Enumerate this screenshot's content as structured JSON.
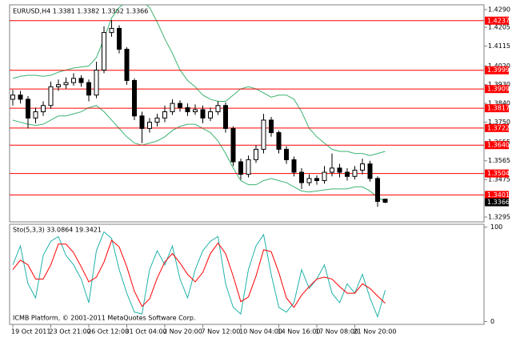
{
  "chart_data": [
    {
      "type": "candlestick",
      "title": "EURUSD,H4  1.3381 1.3382 1.3362 1.3366",
      "categories": [
        "19 Oct 2011",
        null,
        null,
        null,
        null,
        "23 Oct 21:00",
        null,
        null,
        null,
        null,
        "26 Oct 12:00",
        null,
        null,
        null,
        null,
        "31 Oct 04:00",
        null,
        null,
        null,
        null,
        "2 Nov 20:00",
        null,
        null,
        null,
        null,
        "7 Nov 12:00",
        null,
        null,
        null,
        null,
        "10 Nov 04:00",
        null,
        null,
        null,
        null,
        "14 Nov 16:00",
        null,
        null,
        null,
        null,
        "17 Nov 08:00",
        null,
        null,
        null,
        null,
        "21 Nov 20:00",
        null,
        null,
        null,
        null
      ],
      "open": [
        1.386,
        1.388,
        1.386,
        1.377,
        1.38,
        1.383,
        1.392,
        1.393,
        1.394,
        1.396,
        1.394,
        1.388,
        1.4,
        1.418,
        1.42,
        1.41,
        1.395,
        1.378,
        1.372,
        1.375,
        1.377,
        1.38,
        1.384,
        1.382,
        1.38,
        1.381,
        1.377,
        1.38,
        1.383,
        1.372,
        1.356,
        1.35,
        1.357,
        1.362,
        1.376,
        1.37,
        1.362,
        1.357,
        1.351,
        1.346,
        1.348,
        1.347,
        1.351,
        1.353,
        1.351,
        1.349,
        1.352,
        1.355,
        1.348,
        1.3381
      ],
      "high": [
        1.3905,
        1.39,
        1.3875,
        1.382,
        1.385,
        1.3945,
        1.3955,
        1.3965,
        1.3985,
        1.3975,
        1.3955,
        1.404,
        1.421,
        1.424,
        1.4215,
        1.411,
        1.396,
        1.38,
        1.377,
        1.379,
        1.383,
        1.386,
        1.3855,
        1.384,
        1.3835,
        1.383,
        1.382,
        1.385,
        1.3845,
        1.373,
        1.3575,
        1.359,
        1.364,
        1.379,
        1.3775,
        1.371,
        1.3635,
        1.3585,
        1.353,
        1.35,
        1.3495,
        1.354,
        1.36,
        1.355,
        1.353,
        1.354,
        1.3575,
        1.3565,
        1.349,
        1.3382
      ],
      "low": [
        1.383,
        1.384,
        1.372,
        1.3745,
        1.378,
        1.3815,
        1.39,
        1.391,
        1.3925,
        1.392,
        1.385,
        1.3865,
        1.3985,
        1.416,
        1.408,
        1.393,
        1.376,
        1.365,
        1.37,
        1.373,
        1.375,
        1.3785,
        1.38,
        1.378,
        1.3785,
        1.3745,
        1.3755,
        1.3785,
        1.37,
        1.354,
        1.3475,
        1.3485,
        1.3555,
        1.36,
        1.368,
        1.36,
        1.355,
        1.349,
        1.343,
        1.3445,
        1.345,
        1.3455,
        1.349,
        1.3485,
        1.347,
        1.3475,
        1.35,
        1.3465,
        1.3345,
        1.3362
      ],
      "close": [
        1.388,
        1.386,
        1.377,
        1.38,
        1.383,
        1.392,
        1.393,
        1.394,
        1.396,
        1.394,
        1.388,
        1.4,
        1.418,
        1.42,
        1.41,
        1.395,
        1.378,
        1.372,
        1.375,
        1.377,
        1.38,
        1.384,
        1.382,
        1.38,
        1.381,
        1.377,
        1.38,
        1.383,
        1.372,
        1.356,
        1.35,
        1.357,
        1.362,
        1.376,
        1.37,
        1.362,
        1.357,
        1.351,
        1.346,
        1.348,
        1.347,
        1.351,
        1.353,
        1.351,
        1.349,
        1.352,
        1.355,
        1.348,
        1.337,
        1.3366
      ],
      "up_color": "#ffffff",
      "down_color": "#000000",
      "candle_outline": "#000000",
      "bollinger_upper": [
        1.396,
        1.397,
        1.3975,
        1.3975,
        1.397,
        1.3975,
        1.399,
        1.4,
        1.401,
        1.4015,
        1.402,
        1.406,
        1.415,
        1.425,
        1.43,
        1.433,
        1.434,
        1.433,
        1.43,
        1.423,
        1.415,
        1.408,
        1.4,
        1.395,
        1.392,
        1.388,
        1.386,
        1.385,
        1.385,
        1.388,
        1.391,
        1.392,
        1.391,
        1.389,
        1.387,
        1.388,
        1.388,
        1.386,
        1.38,
        1.372,
        1.368,
        1.365,
        1.362,
        1.361,
        1.361,
        1.36,
        1.36,
        1.359,
        1.36,
        1.361
      ],
      "bollinger_lower": [
        1.376,
        1.375,
        1.374,
        1.3735,
        1.374,
        1.376,
        1.378,
        1.378,
        1.379,
        1.38,
        1.382,
        1.383,
        1.38,
        1.376,
        1.372,
        1.368,
        1.365,
        1.364,
        1.365,
        1.366,
        1.368,
        1.371,
        1.373,
        1.374,
        1.374,
        1.372,
        1.37,
        1.366,
        1.36,
        1.353,
        1.347,
        1.345,
        1.345,
        1.347,
        1.348,
        1.347,
        1.346,
        1.344,
        1.342,
        1.3415,
        1.342,
        1.3425,
        1.343,
        1.343,
        1.343,
        1.344,
        1.344,
        1.342,
        1.339,
        1.337
      ],
      "band_color": "#3cb371",
      "levels": [
        {
          "value": 1.4237,
          "label": "1.4237"
        },
        {
          "value": 1.3999,
          "label": "1.3999"
        },
        {
          "value": 1.3909,
          "label": "1.3909"
        },
        {
          "value": 1.3817,
          "label": "1.3817"
        },
        {
          "value": 1.3722,
          "label": "1.3722"
        },
        {
          "value": 1.364,
          "label": "1.3640"
        },
        {
          "value": 1.3504,
          "label": "1.3504"
        },
        {
          "value": 1.3401,
          "label": "1.3401"
        }
      ],
      "level_color": "#ff0000",
      "last_price": {
        "value": 1.3366,
        "label": "1.3366"
      },
      "last_price_color": "#000000",
      "ylim": [
        1.3272,
        1.4313
      ],
      "yticks": [
        {
          "value": 1.429,
          "label": "1.4290"
        },
        {
          "value": 1.4205,
          "label": "1.4205"
        },
        {
          "value": 1.4115,
          "label": "1.4115"
        },
        {
          "value": 1.402,
          "label": "1.4020"
        },
        {
          "value": 1.393,
          "label": "1.3930"
        },
        {
          "value": 1.384,
          "label": "1.3840"
        },
        {
          "value": 1.375,
          "label": "1.3750"
        },
        {
          "value": 1.3655,
          "label": "1.3655"
        },
        {
          "value": 1.3565,
          "label": "1.3565"
        },
        {
          "value": 1.3475,
          "label": "1.3475"
        },
        {
          "value": 1.3295,
          "label": "1.3295"
        }
      ]
    },
    {
      "type": "line",
      "title": "Sto(5,3,3) 33.0864 19.3421",
      "note": "ICMB Platform, © 2001-2011 MetaQuotes Software Corp.",
      "series": [
        {
          "color": "#20b2aa",
          "values": [
            60,
            80,
            40,
            25,
            70,
            85,
            90,
            70,
            60,
            45,
            20,
            75,
            95,
            88,
            55,
            30,
            10,
            8,
            55,
            75,
            60,
            80,
            45,
            25,
            55,
            75,
            85,
            90,
            40,
            15,
            8,
            55,
            80,
            92,
            50,
            15,
            10,
            20,
            55,
            35,
            45,
            60,
            30,
            20,
            40,
            30,
            50,
            25,
            5,
            33.0864
          ]
        },
        {
          "color": "#ff0000",
          "values": [
            55,
            65,
            60,
            45,
            45,
            60,
            82,
            82,
            73,
            58,
            42,
            47,
            63,
            86,
            79,
            58,
            32,
            16,
            24,
            46,
            63,
            72,
            62,
            50,
            42,
            52,
            72,
            83,
            72,
            48,
            21,
            26,
            48,
            76,
            74,
            52,
            25,
            15,
            28,
            37,
            45,
            47,
            45,
            37,
            30,
            30,
            40,
            35,
            27,
            19.3421
          ]
        }
      ],
      "ylim": [
        -3,
        103
      ],
      "yticks": [
        100,
        0
      ]
    }
  ]
}
